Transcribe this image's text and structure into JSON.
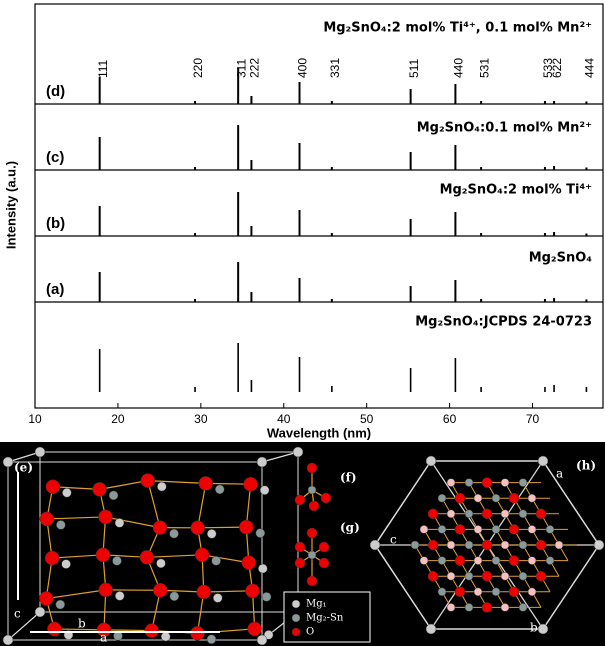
{
  "chart_data": {
    "type": "stick",
    "x_label": "Wavelength (nm)",
    "y_label": "Intensity (a.u.)",
    "xlim": [
      10,
      78.5
    ],
    "xticks": [
      10,
      20,
      30,
      40,
      50,
      60,
      70
    ],
    "ylim": [
      0,
      100
    ],
    "x": [
      17.8,
      29.3,
      34.5,
      36.1,
      41.9,
      45.8,
      55.3,
      60.7,
      63.8,
      71.5,
      72.6,
      76.5
    ],
    "peak_labels": [
      "111",
      "220",
      "311",
      "222",
      "400",
      "331",
      "511",
      "440",
      "531",
      "533",
      "622",
      "444"
    ],
    "series": [
      {
        "name": "Mg₂SnO₄:2 mol% Ti⁴⁺, 0.1 mol% Mn²⁺",
        "label": "(d)",
        "color": "#000000",
        "values": [
          54,
          6,
          72,
          16,
          44,
          6,
          30,
          40,
          6,
          6,
          6,
          5
        ]
      },
      {
        "name": "Mg₂SnO₄:0.1 mol% Mn²⁺",
        "label": "(c)",
        "color": "#000000",
        "values": [
          66,
          6,
          90,
          20,
          54,
          6,
          36,
          50,
          6,
          6,
          8,
          5
        ]
      },
      {
        "name": "Mg₂SnO₄:2 mol% Ti⁴⁺",
        "label": "(b)",
        "color": "#000000",
        "values": [
          60,
          6,
          88,
          20,
          52,
          6,
          34,
          48,
          6,
          6,
          8,
          5
        ]
      },
      {
        "name": "Mg₂SnO₄",
        "label": "(a)",
        "color": "#000000",
        "values": [
          60,
          6,
          80,
          20,
          48,
          6,
          32,
          44,
          6,
          6,
          8,
          5
        ]
      },
      {
        "name": "Mg₂SnO₄:JCPDS 24-0723",
        "color": "#000000",
        "values": [
          86,
          10,
          98,
          24,
          70,
          12,
          48,
          68,
          10,
          10,
          14,
          10
        ]
      }
    ]
  },
  "structure": {
    "panels": [
      "(e)",
      "(f)",
      "(g)",
      "(h)"
    ],
    "legend": [
      "Mg₁",
      "Mg₂-Sn",
      "O"
    ],
    "axes": [
      "c",
      "b",
      "a",
      "a",
      "c",
      "b"
    ]
  }
}
